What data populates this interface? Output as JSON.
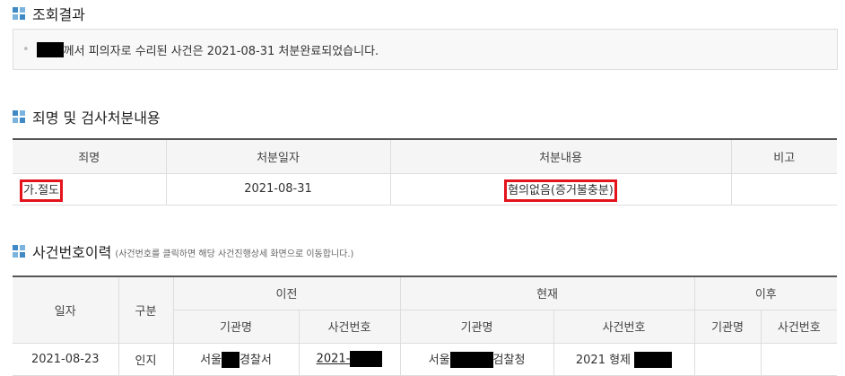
{
  "result": {
    "title": "조회결과",
    "message": "께서 피의자로 수리된 사건은 2021-08-31 처분완료되었습니다."
  },
  "disposition": {
    "title": "죄명 및 검사처분내용",
    "headers": [
      "죄명",
      "처분일자",
      "처분내용",
      "비고"
    ],
    "row": {
      "charge": "가.절도",
      "date": "2021-08-31",
      "content": "혐의없음(증거불충분)",
      "note": ""
    }
  },
  "history": {
    "title": "사건번호이력",
    "subtitle": "(사건번호를 클릭하면 해당 사건진행상세 화면으로 이동합니다.)",
    "headers": {
      "date": "일자",
      "type": "구분",
      "prev": "이전",
      "curr": "현재",
      "next": "이후",
      "org": "기관명",
      "case_no": "사건번호"
    },
    "row": {
      "date": "2021-08-23",
      "type": "인지",
      "prev_org_a": "서울",
      "prev_org_b": "경찰서",
      "prev_case": "2021-",
      "curr_org_a": "서울",
      "curr_org_b": "검찰청",
      "curr_case": "2021 형제"
    }
  },
  "colors": {
    "accent": "#3f8ac6",
    "highlight": "#e3141c"
  }
}
